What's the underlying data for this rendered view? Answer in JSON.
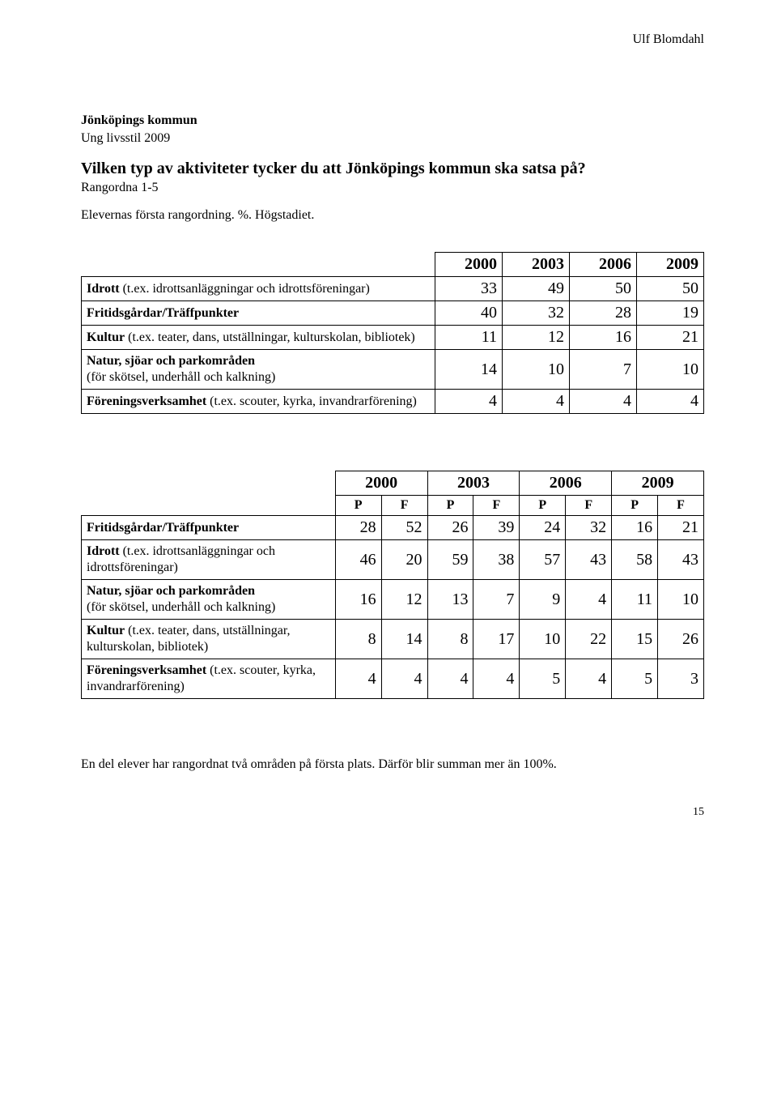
{
  "author": "Ulf Blomdahl",
  "header": {
    "line1": "Jönköpings kommun",
    "line2": "Ung livsstil 2009"
  },
  "title": "Vilken typ av aktiviteter tycker du att Jönköpings kommun ska satsa på?",
  "subtitle": "Rangordna 1-5",
  "line": "Elevernas första rangordning. %. Högstadiet.",
  "table1": {
    "years": [
      "2000",
      "2003",
      "2006",
      "2009"
    ],
    "rows": [
      {
        "label": "<b>Idrott</b> (t.ex. idrottsanläggningar och idrottsföreningar)",
        "vals": [
          "33",
          "49",
          "50",
          "50"
        ]
      },
      {
        "label": "<b>Fritidsgårdar/Träffpunkter</b>",
        "vals": [
          "40",
          "32",
          "28",
          "19"
        ]
      },
      {
        "label": "<b>Kultur</b> (t.ex. teater, dans, utställningar, kulturskolan, bibliotek)",
        "vals": [
          "11",
          "12",
          "16",
          "21"
        ]
      },
      {
        "label": "<b>Natur, sjöar och parkområden</b><br>(för skötsel, underhåll och kalkning)",
        "vals": [
          "14",
          "10",
          "7",
          "10"
        ]
      },
      {
        "label": "<b>Föreningsverksamhet</b> (t.ex. scouter, kyrka, invandrarförening)",
        "vals": [
          "4",
          "4",
          "4",
          "4"
        ]
      }
    ]
  },
  "table2": {
    "years": [
      "2000",
      "2003",
      "2006",
      "2009"
    ],
    "pf": [
      "P",
      "F",
      "P",
      "F",
      "P",
      "F",
      "P",
      "F"
    ],
    "rows": [
      {
        "label": "<b>Fritidsgårdar/Träffpunkter</b>",
        "vals": [
          "28",
          "52",
          "26",
          "39",
          "24",
          "32",
          "16",
          "21"
        ]
      },
      {
        "label": "<b>Idrott</b> (t.ex. idrottsanläggningar och idrottsföreningar)",
        "vals": [
          "46",
          "20",
          "59",
          "38",
          "57",
          "43",
          "58",
          "43"
        ]
      },
      {
        "label": "<b>Natur, sjöar och parkområden</b><br>(för skötsel, underhåll och kalkning)",
        "vals": [
          "16",
          "12",
          "13",
          "7",
          "9",
          "4",
          "11",
          "10"
        ]
      },
      {
        "label": "<b>Kultur</b> (t.ex. teater, dans, utställningar, kulturskolan, bibliotek)",
        "vals": [
          "8",
          "14",
          "8",
          "17",
          "10",
          "22",
          "15",
          "26"
        ]
      },
      {
        "label": "<b>Föreningsverksamhet</b> (t.ex. scouter, kyrka, invandrarförening)",
        "vals": [
          "4",
          "4",
          "4",
          "4",
          "5",
          "4",
          "5",
          "3"
        ]
      }
    ]
  },
  "footnote": "En del elever har rangordnat två områden på första plats. Därför blir summan mer än 100%.",
  "page_number": "15"
}
